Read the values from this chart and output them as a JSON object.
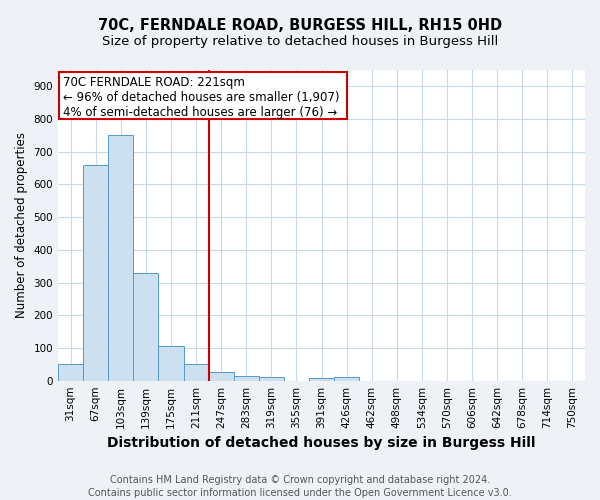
{
  "title": "70C, FERNDALE ROAD, BURGESS HILL, RH15 0HD",
  "subtitle": "Size of property relative to detached houses in Burgess Hill",
  "xlabel": "Distribution of detached houses by size in Burgess Hill",
  "ylabel": "Number of detached properties",
  "footnote1": "Contains HM Land Registry data © Crown copyright and database right 2024.",
  "footnote2": "Contains public sector information licensed under the Open Government Licence v3.0.",
  "bin_labels": [
    "31sqm",
    "67sqm",
    "103sqm",
    "139sqm",
    "175sqm",
    "211sqm",
    "247sqm",
    "283sqm",
    "319sqm",
    "355sqm",
    "391sqm",
    "426sqm",
    "462sqm",
    "498sqm",
    "534sqm",
    "570sqm",
    "606sqm",
    "642sqm",
    "678sqm",
    "714sqm",
    "750sqm"
  ],
  "bar_values": [
    50,
    660,
    750,
    330,
    105,
    50,
    27,
    14,
    10,
    0,
    7,
    10,
    0,
    0,
    0,
    0,
    0,
    0,
    0,
    0,
    0
  ],
  "bar_color": "#cce0f0",
  "bar_edge_color": "#5599cc",
  "vline_x": 5.5,
  "vline_color": "#cc0000",
  "annotation_line1": "70C FERNDALE ROAD: 221sqm",
  "annotation_line2": "← 96% of detached houses are smaller (1,907)",
  "annotation_line3": "4% of semi-detached houses are larger (76) →",
  "box_edge_color": "#cc0000",
  "annotation_fontsize": 8.5,
  "ylim": [
    0,
    950
  ],
  "yticks": [
    0,
    100,
    200,
    300,
    400,
    500,
    600,
    700,
    800,
    900
  ],
  "background_color": "#eef2f7",
  "axes_background": "#ffffff",
  "grid_color": "#c8d8e8",
  "title_fontsize": 10.5,
  "subtitle_fontsize": 9.5,
  "xlabel_fontsize": 10,
  "ylabel_fontsize": 8.5,
  "tick_fontsize": 7.5,
  "footnote_fontsize": 7
}
